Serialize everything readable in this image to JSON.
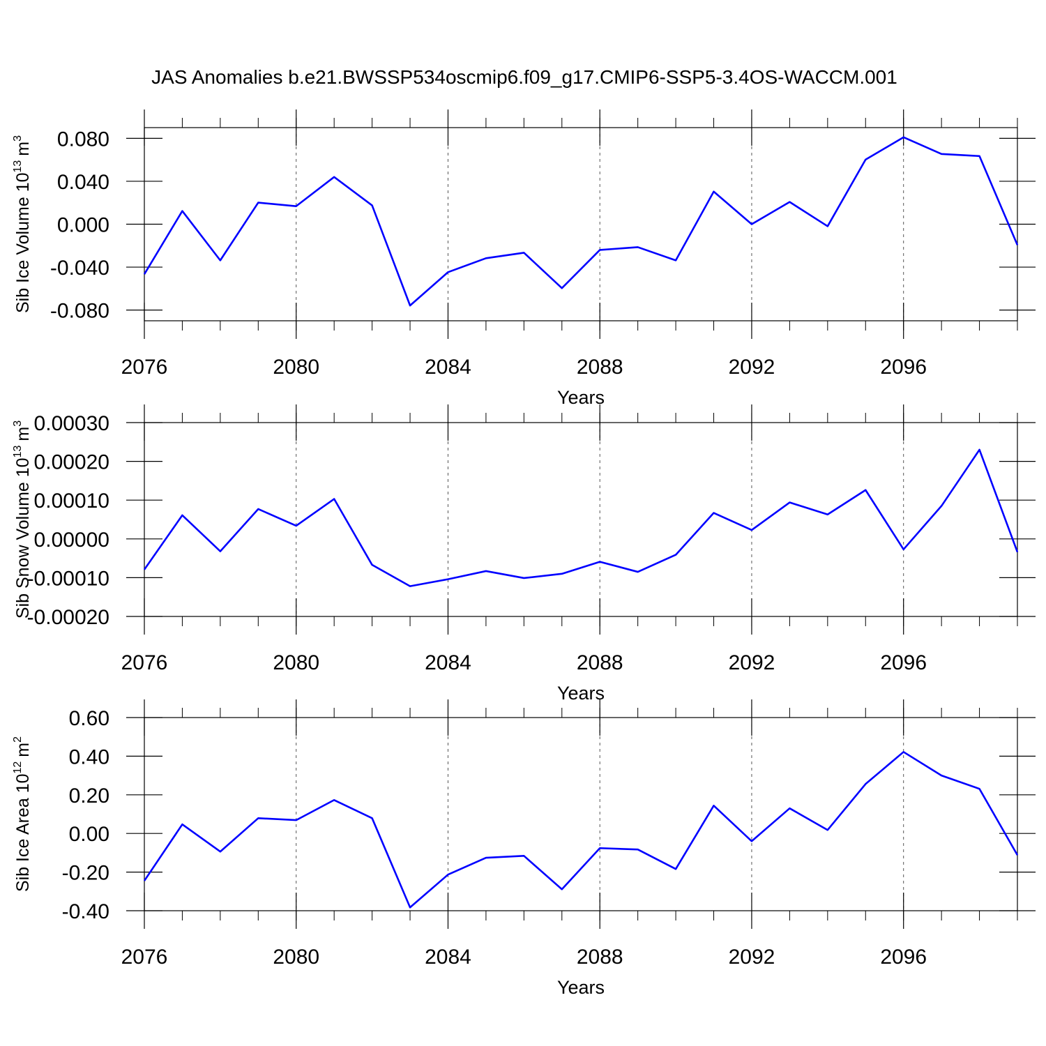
{
  "chart_data": [
    {
      "type": "line",
      "title": "JAS Anomalies b.e21.BWSSP534oscmip6.f09_g17.CMIP6-SSP5-3.4OS-WACCM.001",
      "ylabel": [
        "Sib Ice Volume 10",
        "13",
        "m",
        "3"
      ],
      "xlabel": "Years",
      "color": "#0000ff",
      "grid": true,
      "x": [
        2076,
        2077,
        2078,
        2079,
        2080,
        2081,
        2082,
        2083,
        2084,
        2085,
        2086,
        2087,
        2088,
        2089,
        2090,
        2091,
        2092,
        2093,
        2094,
        2095,
        2096,
        2097,
        2098,
        2099
      ],
      "values": [
        -0.0466,
        0.0123,
        -0.0337,
        0.0201,
        0.0168,
        0.044,
        0.0175,
        -0.0758,
        -0.0447,
        -0.0317,
        -0.0266,
        -0.0596,
        -0.024,
        -0.0214,
        -0.0337,
        0.0304,
        0.0,
        0.0207,
        -0.0019,
        0.0602,
        0.081,
        0.0654,
        0.0635,
        -0.0194
      ],
      "xlim": [
        2076,
        2099
      ],
      "xticks": [
        2076,
        2080,
        2084,
        2088,
        2092,
        2096
      ],
      "ylim": [
        -0.09,
        0.09
      ],
      "yticks": [
        {
          "value": -0.08,
          "label": "-0.080"
        },
        {
          "value": -0.04,
          "label": "-0.040"
        },
        {
          "value": 0,
          "label": "0.000"
        },
        {
          "value": 0.04,
          "label": "0.040"
        },
        {
          "value": 0.08,
          "label": "0.080"
        }
      ]
    },
    {
      "type": "line",
      "ylabel": [
        "Sib Snow Volume 10",
        "13",
        "m",
        "3"
      ],
      "xlabel": "Years",
      "color": "#0000ff",
      "grid": true,
      "x": [
        2076,
        2077,
        2078,
        2079,
        2080,
        2081,
        2082,
        2083,
        2084,
        2085,
        2086,
        2087,
        2088,
        2089,
        2090,
        2091,
        2092,
        2093,
        2094,
        2095,
        2096,
        2097,
        2098,
        2099
      ],
      "values": [
        -7.9e-05,
        6.1e-05,
        -3.2e-05,
        7.7e-05,
        3.4e-05,
        0.000103,
        -6.7e-05,
        -0.000122,
        -0.000104,
        -8.3e-05,
        -0.000101,
        -9e-05,
        -5.9e-05,
        -8.5e-05,
        -4.1e-05,
        6.7e-05,
        2.3e-05,
        9.4e-05,
        6.3e-05,
        0.000126,
        -2.7e-05,
        8.5e-05,
        0.00023,
        -3.4e-05
      ],
      "xlim": [
        2076,
        2099
      ],
      "xticks": [
        2076,
        2080,
        2084,
        2088,
        2092,
        2096
      ],
      "ylim": [
        -0.0002,
        0.0003
      ],
      "yticks": [
        {
          "value": -0.0002,
          "label": "-0.00020"
        },
        {
          "value": -0.0001,
          "label": "-0.00010"
        },
        {
          "value": 0,
          "label": "0.00000"
        },
        {
          "value": 0.0001,
          "label": "0.00010"
        },
        {
          "value": 0.0002,
          "label": "0.00020"
        },
        {
          "value": 0.0003,
          "label": "0.00030"
        }
      ]
    },
    {
      "type": "line",
      "ylabel": [
        "Sib Ice Area 10",
        "12",
        "m",
        "2"
      ],
      "xlabel": "Years",
      "color": "#0000ff",
      "grid": true,
      "x": [
        2076,
        2077,
        2078,
        2079,
        2080,
        2081,
        2082,
        2083,
        2084,
        2085,
        2086,
        2087,
        2088,
        2089,
        2090,
        2091,
        2092,
        2093,
        2094,
        2095,
        2096,
        2097,
        2098,
        2099
      ],
      "values": [
        -0.245,
        0.047,
        -0.094,
        0.079,
        0.069,
        0.173,
        0.079,
        -0.383,
        -0.213,
        -0.126,
        -0.116,
        -0.289,
        -0.076,
        -0.083,
        -0.184,
        0.144,
        -0.04,
        0.13,
        0.018,
        0.256,
        0.422,
        0.3,
        0.231,
        -0.112
      ],
      "xlim": [
        2076,
        2099
      ],
      "xticks": [
        2076,
        2080,
        2084,
        2088,
        2092,
        2096
      ],
      "ylim": [
        -0.4,
        0.6
      ],
      "yticks": [
        {
          "value": -0.4,
          "label": "-0.40"
        },
        {
          "value": -0.2,
          "label": "-0.20"
        },
        {
          "value": 0,
          "label": "0.00"
        },
        {
          "value": 0.2,
          "label": "0.20"
        },
        {
          "value": 0.4,
          "label": "0.40"
        },
        {
          "value": 0.6,
          "label": "0.60"
        }
      ]
    }
  ]
}
